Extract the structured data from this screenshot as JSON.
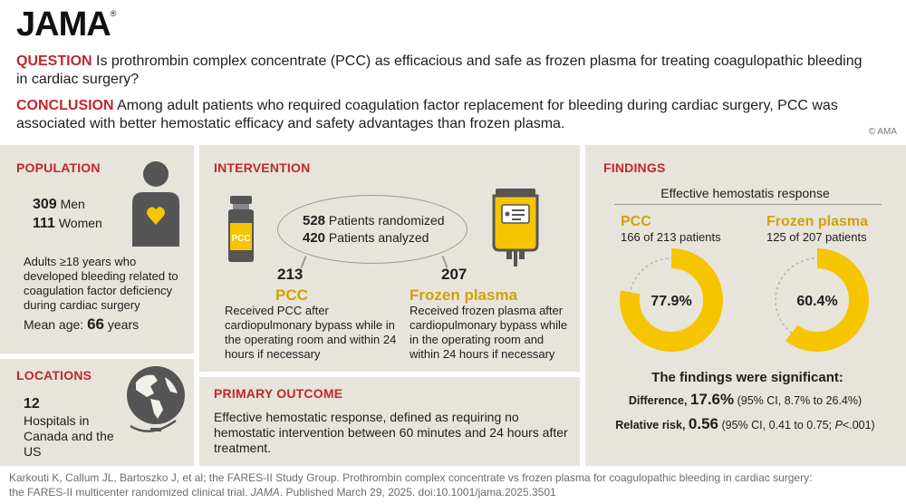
{
  "header": {
    "logo": "JAMA",
    "logo_mark": "®",
    "question_label": "QUESTION",
    "question_text": "Is prothrombin complex concentrate (PCC) as efficacious and safe as frozen plasma for treating coagulopathic bleeding in cardiac surgery?",
    "conclusion_label": "CONCLUSION",
    "conclusion_text": "Among adult patients who required coagulation factor replacement for bleeding during cardiac surgery, PCC was associated with better hemostatic efficacy and safety advantages than frozen plasma.",
    "copyright": "© AMA"
  },
  "population": {
    "title": "POPULATION",
    "men_count": "309",
    "men_label": "Men",
    "women_count": "111",
    "women_label": "Women",
    "criteria": "Adults ≥18 years who developed bleeding related to coagulation factor deficiency during cardiac surgery",
    "mean_age_label": "Mean age:",
    "mean_age_value": "66",
    "mean_age_unit": "years",
    "icon": "person-heart-icon"
  },
  "locations": {
    "title": "LOCATIONS",
    "count": "12",
    "text": "Hospitals in Canada and the US",
    "icon": "globe-icon"
  },
  "intervention": {
    "title": "INTERVENTION",
    "randomized_count": "528",
    "randomized_label": "Patients randomized",
    "analyzed_count": "420",
    "analyzed_label": "Patients analyzed",
    "vial_label": "PCC",
    "pcc": {
      "count": "213",
      "name": "PCC",
      "description": "Received PCC after cardiopulmonary bypass while in the operating room and within 24 hours if necessary"
    },
    "plasma": {
      "count": "207",
      "name": "Frozen plasma",
      "description": "Received frozen plasma after cardiopulmonary bypass while in the operating room and within 24 hours if necessary"
    }
  },
  "primary_outcome": {
    "title": "PRIMARY OUTCOME",
    "text": "Effective hemostatic response, defined as requiring no hemostatic intervention between 60 minutes and 24 hours after treatment."
  },
  "findings": {
    "title": "FINDINGS",
    "subtitle": "Effective hemostatis response",
    "pcc": {
      "name": "PCC",
      "detail": "166 of 213 patients",
      "percent": 77.9,
      "percent_label": "77.9%"
    },
    "plasma": {
      "name": "Frozen plasma",
      "detail": "125 of 207 patients",
      "percent": 60.4,
      "percent_label": "60.4%"
    },
    "significance": "The findings were significant:",
    "difference_label": "Difference,",
    "difference_value": "17.6%",
    "difference_ci": "(95% CI, 8.7% to 26.4%)",
    "rr_label": "Relative risk,",
    "rr_value": "0.56",
    "rr_ci_a": "(95% CI, 0.41 to 0.75;",
    "rr_p": "P",
    "rr_ci_b": "<.001)",
    "colors": {
      "ring": "#f6c500",
      "ring_bg": "#b9b5ac"
    }
  },
  "footer": {
    "line1": "Karkouti K, Callum JL, Bartoszko J, et al; the FARES-II Study Group. Prothrombin complex concentrate vs frozen plasma for coagulopathic bleeding in cardiac surgery:",
    "line2a": "the FARES-II multicenter randomized clinical trial.",
    "journal": "JAMA",
    "line2b": ". Published March 29, 2025. doi:10.1001/jama.2025.3501"
  }
}
